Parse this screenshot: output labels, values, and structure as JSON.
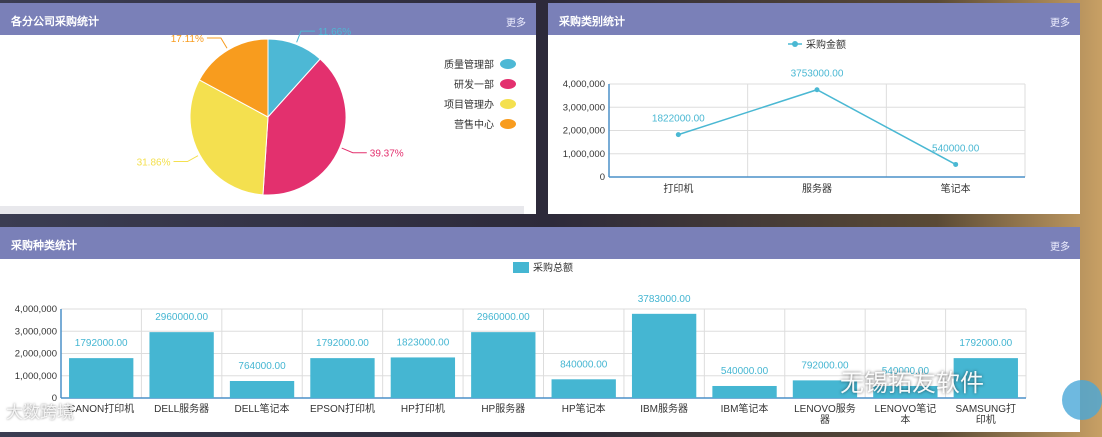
{
  "panels": {
    "pie": {
      "title": "各分公司采购统计",
      "more": "更多"
    },
    "line": {
      "title": "采购类别统计",
      "more": "更多"
    },
    "bar": {
      "title": "采购种类统计",
      "more": "更多"
    }
  },
  "watermarks": {
    "left": "大数跨境",
    "right": "无锡拓友软件"
  },
  "chart_data": [
    {
      "type": "pie",
      "title": "",
      "slices": [
        {
          "name": "质量管理部",
          "value": 11.66,
          "label": "11.66%",
          "color": "#4db8d5"
        },
        {
          "name": "研发一部",
          "value": 39.37,
          "label": "39.37%",
          "color": "#e3306e"
        },
        {
          "name": "项目管理办",
          "value": 31.86,
          "label": "31.86%",
          "color": "#f4e04f"
        },
        {
          "name": "营售中心",
          "value": 17.11,
          "label": "17.11%",
          "color": "#f89c1e"
        }
      ],
      "legend_position": "right"
    },
    {
      "type": "line",
      "title": "",
      "categories": [
        "打印机",
        "服务器",
        "笔记本"
      ],
      "series": [
        {
          "name": "采购金额",
          "values": [
            1822000,
            3753000,
            540000
          ],
          "labels": [
            "1822000.00",
            "3753000.00",
            "540000.00"
          ],
          "color": "#4ab8d3"
        }
      ],
      "ylim": [
        0,
        4000000
      ],
      "yticks": [
        "0",
        "1,000,000",
        "2,000,000",
        "3,000,000",
        "4,000,000"
      ],
      "grid": true,
      "legend_position": "top-center"
    },
    {
      "type": "bar",
      "title": "",
      "categories": [
        "CANON打印机",
        "DELL服务器",
        "DELL笔记本",
        "EPSON打印机",
        "HP打印机",
        "HP服务器",
        "HP笔记本",
        "IBM服务器",
        "IBM笔记本",
        "LENOVO服务器",
        "LENOVO笔记本",
        "SAMSUNG打印机"
      ],
      "category_lines": [
        [
          "CANON打印机"
        ],
        [
          "DELL服务器"
        ],
        [
          "DELL笔记本"
        ],
        [
          "EPSON打印机"
        ],
        [
          "HP打印机"
        ],
        [
          "HP服务器"
        ],
        [
          "HP笔记本"
        ],
        [
          "IBM服务器"
        ],
        [
          "IBM笔记本"
        ],
        [
          "LENOVO服务",
          "器"
        ],
        [
          "LENOVO笔记",
          "本"
        ],
        [
          "SAMSUNG打",
          "印机"
        ]
      ],
      "series": [
        {
          "name": "采购总额",
          "values": [
            1792000,
            2960000,
            764000,
            1792000,
            1823000,
            2960000,
            840000,
            3783000,
            540000,
            792000,
            540000,
            1792000
          ],
          "labels": [
            "1792000.00",
            "2960000.00",
            "764000.00",
            "1792000.00",
            "1823000.00",
            "2960000.00",
            "840000.00",
            "3783000.00",
            "540000.00",
            "792000.00",
            "540000.00",
            "1792000.00"
          ],
          "color": "#45b6d2"
        }
      ],
      "ylim": [
        0,
        4000000
      ],
      "yticks": [
        "0",
        "1,000,000",
        "2,000,000",
        "3,000,000",
        "4,000,000"
      ],
      "grid": true,
      "legend_position": "top-center"
    }
  ]
}
